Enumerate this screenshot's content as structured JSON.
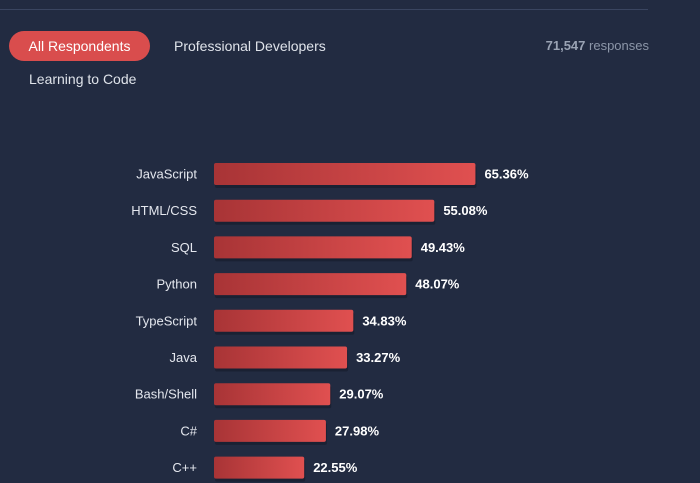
{
  "tabs": [
    {
      "label": "All Respondents",
      "active": true
    },
    {
      "label": "Professional Developers",
      "active": false
    },
    {
      "label": "Learning to Code",
      "active": false
    }
  ],
  "responses": {
    "count": "71,547",
    "label": "responses"
  },
  "colors": {
    "background": "#222b41",
    "accent": "#d94d4d",
    "bar_dark": "#a83436",
    "bar_light": "#e05050"
  },
  "chart_data": {
    "type": "bar",
    "orientation": "horizontal",
    "categories": [
      "JavaScript",
      "HTML/CSS",
      "SQL",
      "Python",
      "TypeScript",
      "Java",
      "Bash/Shell",
      "C#",
      "C++"
    ],
    "values": [
      65.36,
      55.08,
      49.43,
      48.07,
      34.83,
      33.27,
      29.07,
      27.98,
      22.55
    ],
    "value_labels": [
      "65.36%",
      "55.08%",
      "49.43%",
      "48.07%",
      "34.83%",
      "33.27%",
      "29.07%",
      "27.98%",
      "22.55%"
    ],
    "unit": "%",
    "xlim": [
      0,
      100
    ],
    "grid": false,
    "legend": "none"
  }
}
